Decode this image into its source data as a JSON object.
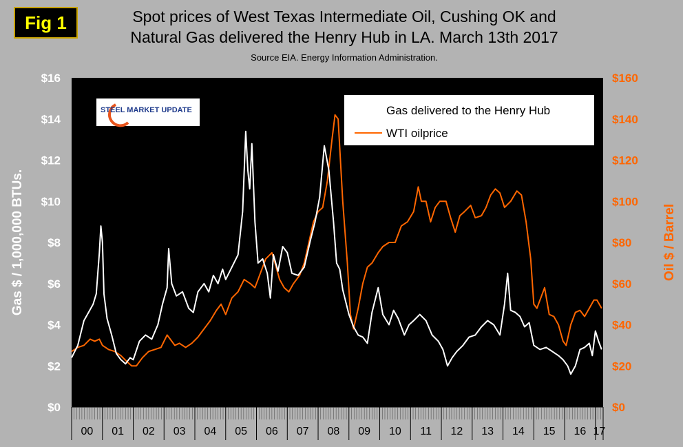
{
  "header": {
    "badge": "Fig 1",
    "title_line1": "Spot prices of West Texas Intermediate Oil, Cushing OK and",
    "title_line2": "Natural Gas delivered the Henry Hub in LA. March 13th 2017",
    "source": "Source EIA. Energy Information Administration."
  },
  "logo": {
    "text": "STEEL MARKET UPDATE"
  },
  "colors": {
    "gas": "#ffffff",
    "oil": "#ff6600",
    "plot_bg": "#000000",
    "page_bg": "#b3b3b3"
  },
  "chart_data": {
    "type": "line",
    "title": "Spot prices of West Texas Intermediate Oil, Cushing OK and Natural Gas delivered the Henry Hub in LA. March 13th 2017",
    "ylabel": "Gas $ / 1,000,000 BTUs.",
    "y2label": "Oil $ / Barrel",
    "ylim": [
      0,
      16
    ],
    "y2lim": [
      0,
      160
    ],
    "yticks": [
      "$0",
      "$2",
      "$4",
      "$6",
      "$8",
      "$10",
      "$12",
      "$14",
      "$16"
    ],
    "y2ticks": [
      "$0",
      "$20",
      "$40",
      "$60",
      "$80",
      "$100",
      "$120",
      "$140",
      "$160"
    ],
    "xticks": [
      "00",
      "01",
      "02",
      "03",
      "04",
      "05",
      "06",
      "07",
      "08",
      "09",
      "10",
      "11",
      "12",
      "13",
      "14",
      "15",
      "16",
      "17"
    ],
    "xlim": [
      2000,
      2017.25
    ],
    "grid": false,
    "legend_position": "top-right",
    "series": [
      {
        "name": "Gas delivered to the Henry Hub",
        "axis": "left",
        "color": "#ffffff",
        "x": [
          2000.0,
          2000.2,
          2000.4,
          2000.55,
          2000.7,
          2000.8,
          2000.9,
          2000.95,
          2001.0,
          2001.05,
          2001.15,
          2001.3,
          2001.45,
          2001.6,
          2001.75,
          2001.9,
          2002.0,
          2002.2,
          2002.4,
          2002.6,
          2002.8,
          2002.95,
          2003.1,
          2003.15,
          2003.25,
          2003.4,
          2003.6,
          2003.8,
          2003.95,
          2004.1,
          2004.3,
          2004.45,
          2004.6,
          2004.75,
          2004.9,
          2005.0,
          2005.2,
          2005.4,
          2005.55,
          2005.65,
          2005.72,
          2005.78,
          2005.85,
          2005.95,
          2006.05,
          2006.2,
          2006.35,
          2006.45,
          2006.55,
          2006.7,
          2006.85,
          2007.0,
          2007.15,
          2007.35,
          2007.55,
          2007.75,
          2007.9,
          2008.05,
          2008.2,
          2008.35,
          2008.5,
          2008.6,
          2008.7,
          2008.8,
          2009.0,
          2009.15,
          2009.3,
          2009.45,
          2009.6,
          2009.75,
          2009.85,
          2009.95,
          2010.1,
          2010.3,
          2010.45,
          2010.6,
          2010.8,
          2010.95,
          2011.1,
          2011.3,
          2011.5,
          2011.7,
          2011.9,
          2012.05,
          2012.2,
          2012.35,
          2012.5,
          2012.7,
          2012.9,
          2013.1,
          2013.3,
          2013.5,
          2013.7,
          2013.9,
          2014.05,
          2014.15,
          2014.25,
          2014.4,
          2014.55,
          2014.7,
          2014.85,
          2015.0,
          2015.2,
          2015.4,
          2015.6,
          2015.8,
          2015.95,
          2016.1,
          2016.2,
          2016.35,
          2016.5,
          2016.65,
          2016.8,
          2016.9,
          2017.0,
          2017.1,
          2017.2
        ],
        "y": [
          2.4,
          3.0,
          4.2,
          4.6,
          5.0,
          5.5,
          7.5,
          8.8,
          8.0,
          5.5,
          4.3,
          3.5,
          2.6,
          2.3,
          2.1,
          2.4,
          2.3,
          3.2,
          3.5,
          3.3,
          4.0,
          5.0,
          5.8,
          7.7,
          6.0,
          5.4,
          5.6,
          4.8,
          4.6,
          5.6,
          6.0,
          5.6,
          6.4,
          6.0,
          6.7,
          6.2,
          6.8,
          7.4,
          9.5,
          13.4,
          11.5,
          10.6,
          12.8,
          9.0,
          7.0,
          7.2,
          6.5,
          5.3,
          7.4,
          6.6,
          7.8,
          7.5,
          6.5,
          6.4,
          6.8,
          8.1,
          9.0,
          10.2,
          12.7,
          11.5,
          9.0,
          7.0,
          6.7,
          5.7,
          4.5,
          3.9,
          3.5,
          3.4,
          3.1,
          4.6,
          5.2,
          5.8,
          4.5,
          4.0,
          4.7,
          4.3,
          3.5,
          4.0,
          4.2,
          4.5,
          4.2,
          3.5,
          3.2,
          2.8,
          2.0,
          2.4,
          2.7,
          3.0,
          3.4,
          3.5,
          3.9,
          4.2,
          4.0,
          3.5,
          5.0,
          6.5,
          4.7,
          4.6,
          4.4,
          3.9,
          4.1,
          3.0,
          2.8,
          2.9,
          2.7,
          2.5,
          2.3,
          2.0,
          1.6,
          2.0,
          2.8,
          2.9,
          3.1,
          2.5,
          3.7,
          3.2,
          2.8
        ]
      },
      {
        "name": "WTI oilprice",
        "axis": "right",
        "color": "#ff6600",
        "x": [
          2000.0,
          2000.2,
          2000.4,
          2000.6,
          2000.75,
          2000.9,
          2001.0,
          2001.2,
          2001.4,
          2001.6,
          2001.8,
          2001.95,
          2002.1,
          2002.3,
          2002.5,
          2002.7,
          2002.9,
          2003.1,
          2003.2,
          2003.35,
          2003.5,
          2003.7,
          2003.9,
          2004.1,
          2004.3,
          2004.5,
          2004.7,
          2004.85,
          2005.0,
          2005.2,
          2005.4,
          2005.6,
          2005.8,
          2005.95,
          2006.1,
          2006.3,
          2006.5,
          2006.6,
          2006.75,
          2006.9,
          2007.05,
          2007.2,
          2007.4,
          2007.55,
          2007.7,
          2007.85,
          2008.0,
          2008.15,
          2008.3,
          2008.45,
          2008.55,
          2008.65,
          2008.8,
          2008.95,
          2009.05,
          2009.15,
          2009.3,
          2009.45,
          2009.6,
          2009.75,
          2009.95,
          2010.1,
          2010.3,
          2010.5,
          2010.7,
          2010.9,
          2011.1,
          2011.25,
          2011.35,
          2011.5,
          2011.65,
          2011.8,
          2011.95,
          2012.15,
          2012.3,
          2012.45,
          2012.6,
          2012.75,
          2012.95,
          2013.1,
          2013.3,
          2013.45,
          2013.6,
          2013.75,
          2013.9,
          2014.05,
          2014.25,
          2014.45,
          2014.6,
          2014.75,
          2014.9,
          2015.0,
          2015.1,
          2015.2,
          2015.35,
          2015.5,
          2015.65,
          2015.8,
          2015.95,
          2016.05,
          2016.2,
          2016.35,
          2016.5,
          2016.65,
          2016.8,
          2016.95,
          2017.05,
          2017.2
        ],
        "y": [
          27,
          29,
          30,
          33,
          32,
          33,
          30,
          28,
          27,
          25,
          22,
          20,
          20,
          24,
          27,
          28,
          29,
          35,
          33,
          30,
          31,
          29,
          31,
          34,
          38,
          42,
          47,
          50,
          45,
          53,
          56,
          62,
          60,
          58,
          64,
          72,
          75,
          70,
          62,
          58,
          56,
          60,
          64,
          70,
          80,
          90,
          95,
          97,
          110,
          130,
          142,
          140,
          100,
          70,
          45,
          38,
          48,
          60,
          68,
          70,
          75,
          78,
          80,
          80,
          88,
          90,
          95,
          107,
          100,
          100,
          90,
          97,
          100,
          100,
          92,
          85,
          93,
          95,
          98,
          92,
          93,
          97,
          103,
          106,
          104,
          97,
          100,
          105,
          103,
          90,
          72,
          50,
          48,
          52,
          58,
          45,
          44,
          40,
          32,
          30,
          40,
          46,
          47,
          44,
          48,
          52,
          52,
          48
        ]
      }
    ]
  }
}
